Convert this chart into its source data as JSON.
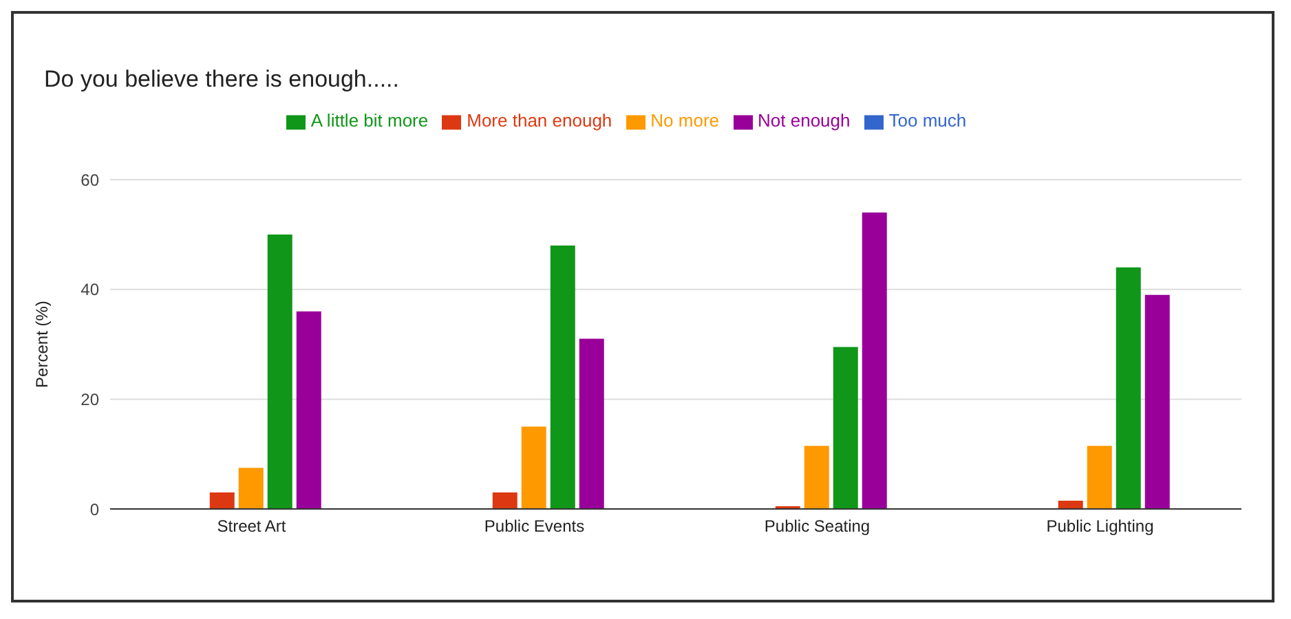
{
  "chart_data": {
    "type": "bar",
    "title": "Do you believe there is enough.....",
    "ylabel": "Percent (%)",
    "categories": [
      "Street Art",
      "Public Events",
      "Public Seating",
      "Public Lighting"
    ],
    "series": [
      {
        "name": "Too much",
        "color": "#3366cc",
        "values": [
          0,
          0,
          0,
          0
        ]
      },
      {
        "name": "More than enough",
        "color": "#dc3912",
        "values": [
          3,
          3,
          0.5,
          1.5
        ]
      },
      {
        "name": "No more",
        "color": "#ff9900",
        "values": [
          7.5,
          15,
          11.5,
          11.5
        ]
      },
      {
        "name": "A little bit more",
        "color": "#109618",
        "values": [
          50,
          48,
          29.5,
          44
        ]
      },
      {
        "name": "Not enough",
        "color": "#990099",
        "values": [
          36,
          31,
          54,
          39
        ]
      }
    ],
    "ylim": [
      0,
      60
    ],
    "yticks": [
      0,
      20,
      40,
      60
    ],
    "grid": "y",
    "legend": "top"
  }
}
